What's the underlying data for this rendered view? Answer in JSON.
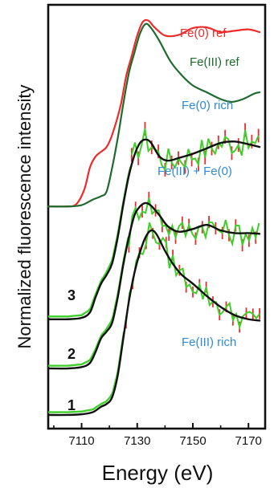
{
  "chart_data": {
    "type": "line",
    "xlabel": "Energy (eV)",
    "ylabel": "Normalized fluorescence intensity",
    "xlim": [
      7098,
      7176
    ],
    "x_ticks": [
      7110,
      7130,
      7150,
      7170
    ],
    "y_ticks_labeled": false,
    "grid": false,
    "colors": {
      "fe0_ref": "#ee2b2b",
      "fe3_ref": "#1f6b2e",
      "data_trace": "#3fcf2a",
      "error_bars": "#ee2b2b",
      "fit": "#111111",
      "annotation_blue": "#2f8bd6"
    },
    "series": [
      {
        "name": "Fe(0) ref",
        "x": [
          7098,
          7104,
          7108,
          7111,
          7113,
          7115,
          7117,
          7119,
          7121,
          7124,
          7126,
          7128,
          7130,
          7132,
          7134,
          7136,
          7140,
          7145,
          7150,
          7155,
          7160,
          7165,
          7170,
          7174
        ],
        "y": [
          3.05,
          3.05,
          3.08,
          3.3,
          3.62,
          3.78,
          3.85,
          3.92,
          4.1,
          4.52,
          4.95,
          5.25,
          5.55,
          5.75,
          5.77,
          5.68,
          5.55,
          5.56,
          5.66,
          5.67,
          5.6,
          5.62,
          5.64,
          5.6
        ]
      },
      {
        "name": "Fe(III) ref",
        "x": [
          7098,
          7105,
          7110,
          7114,
          7117,
          7119,
          7121,
          7123,
          7125,
          7127,
          7129,
          7131,
          7133,
          7135,
          7138,
          7142,
          7146,
          7150,
          7155,
          7160,
          7164,
          7168,
          7172,
          7174
        ],
        "y": [
          3.05,
          3.05,
          3.07,
          3.15,
          3.2,
          3.27,
          3.62,
          4.05,
          4.55,
          5.0,
          5.3,
          5.58,
          5.72,
          5.66,
          5.47,
          5.17,
          4.97,
          4.82,
          4.72,
          4.62,
          4.58,
          4.62,
          4.7,
          4.72
        ]
      },
      {
        "name": "Trace 3 — Fe(0) rich (fit)",
        "x": [
          7098,
          7105,
          7110,
          7113,
          7115,
          7117,
          7119,
          7121,
          7123,
          7125,
          7127,
          7129,
          7131,
          7133,
          7135,
          7138,
          7141,
          7145,
          7150,
          7155,
          7160,
          7165,
          7170,
          7174
        ],
        "y": [
          1.4,
          1.4,
          1.42,
          1.5,
          1.72,
          1.92,
          2.05,
          2.22,
          2.6,
          3.08,
          3.5,
          3.8,
          3.98,
          4.03,
          3.98,
          3.78,
          3.72,
          3.76,
          3.82,
          3.9,
          3.98,
          4.0,
          3.96,
          3.92
        ]
      },
      {
        "name": "Trace 2 — Fe(III) + Fe(0) (fit)",
        "x": [
          7098,
          7105,
          7110,
          7113,
          7115,
          7117,
          7119,
          7121,
          7123,
          7125,
          7127,
          7129,
          7131,
          7133,
          7135,
          7138,
          7141,
          7145,
          7150,
          7155,
          7160,
          7165,
          7170,
          7174
        ],
        "y": [
          0.68,
          0.68,
          0.7,
          0.76,
          0.92,
          1.12,
          1.22,
          1.35,
          1.72,
          2.2,
          2.6,
          2.92,
          3.05,
          3.1,
          3.06,
          2.92,
          2.76,
          2.68,
          2.72,
          2.78,
          2.7,
          2.66,
          2.66,
          2.65
        ]
      },
      {
        "name": "Trace 1 — Fe(III) rich (fit)",
        "x": [
          7098,
          7105,
          7110,
          7114,
          7117,
          7119,
          7121,
          7123,
          7125,
          7127,
          7129,
          7131,
          7133,
          7135,
          7137,
          7140,
          7143,
          7146,
          7150,
          7155,
          7160,
          7165,
          7170,
          7174
        ],
        "y": [
          0.0,
          0.0,
          0.01,
          0.04,
          0.12,
          0.16,
          0.26,
          0.58,
          1.12,
          1.66,
          2.08,
          2.38,
          2.6,
          2.7,
          2.64,
          2.4,
          2.2,
          2.05,
          1.92,
          1.74,
          1.58,
          1.46,
          1.4,
          1.38
        ]
      }
    ],
    "series_labels": [
      "Fe(0) ref",
      "Fe(III) ref",
      "Fe(0) rich",
      "Fe(III) + Fe(0)",
      "Fe(III) rich"
    ],
    "trace_numbers": [
      "3",
      "2",
      "1"
    ],
    "noisy_traces": [
      {
        "fit_index": 2,
        "x_start": 7128,
        "x_end": 7174,
        "step": 1.2,
        "amplitude": 0.2,
        "error": 0.1
      },
      {
        "fit_index": 3,
        "x_start": 7127,
        "x_end": 7174,
        "step": 1.2,
        "amplitude": 0.18,
        "error": 0.09
      },
      {
        "fit_index": 4,
        "x_start": 7126,
        "x_end": 7174,
        "step": 1.2,
        "amplitude": 0.16,
        "error": 0.08
      }
    ]
  }
}
